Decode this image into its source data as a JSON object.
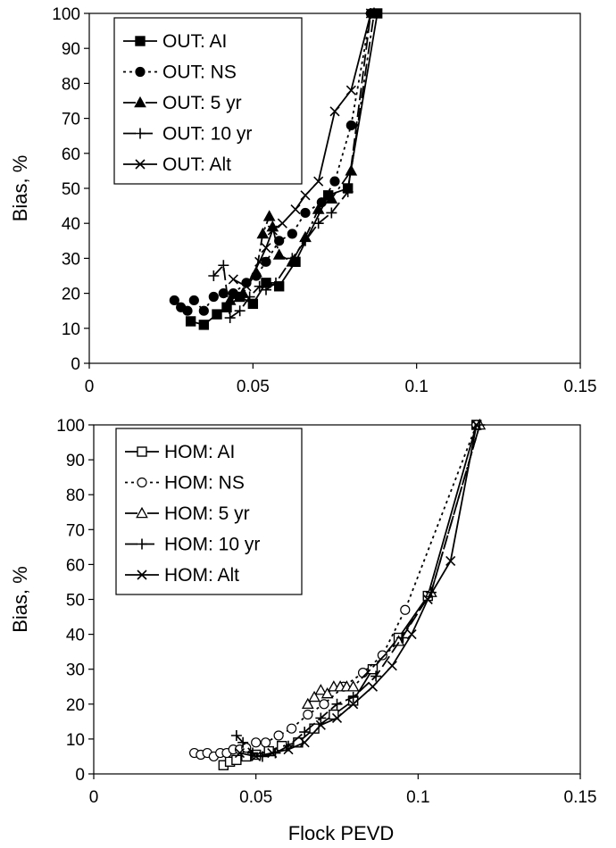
{
  "chart_data": [
    {
      "type": "scatter",
      "title": "",
      "xlabel": "",
      "ylabel": "Bias, %",
      "xlim": [
        0,
        0.15
      ],
      "ylim": [
        0,
        100
      ],
      "x_ticks": [
        "0",
        "0.05",
        "0.1",
        "0.15"
      ],
      "y_ticks": [
        "0",
        "10",
        "20",
        "30",
        "40",
        "50",
        "60",
        "70",
        "80",
        "90",
        "100"
      ],
      "grid": false,
      "legend": "top-left",
      "series": [
        {
          "name": "OUT: AI",
          "marker": "square-filled",
          "line": "solid",
          "x": [
            0.031,
            0.035,
            0.039,
            0.042,
            0.046,
            0.05,
            0.054,
            0.058,
            0.063,
            0.073,
            0.079,
            0.088
          ],
          "y": [
            12,
            11,
            14,
            16,
            19,
            17,
            23,
            22,
            29,
            48,
            50,
            100
          ]
        },
        {
          "name": "OUT: NS",
          "marker": "circle-filled",
          "line": "dotted",
          "x": [
            0.026,
            0.028,
            0.03,
            0.032,
            0.035,
            0.038,
            0.041,
            0.044,
            0.048,
            0.051,
            0.054,
            0.058,
            0.062,
            0.066,
            0.071,
            0.075,
            0.08,
            0.086
          ],
          "y": [
            18,
            16,
            15,
            18,
            15,
            19,
            20,
            20,
            23,
            25,
            29,
            35,
            37,
            43,
            46,
            52,
            68,
            100
          ]
        },
        {
          "name": "OUT: 5 yr",
          "marker": "triangle-filled",
          "line": "dash-dot",
          "x": [
            0.043,
            0.047,
            0.051,
            0.053,
            0.055,
            0.056,
            0.058,
            0.062,
            0.066,
            0.07,
            0.074,
            0.08,
            0.087
          ],
          "y": [
            18,
            20,
            26,
            37,
            42,
            39,
            31,
            29,
            36,
            44,
            47,
            55,
            100
          ]
        },
        {
          "name": "OUT: 10 yr",
          "marker": "plus",
          "line": "long-dash",
          "x": [
            0.038,
            0.041,
            0.043,
            0.046,
            0.049,
            0.052,
            0.054,
            0.057,
            0.062,
            0.066,
            0.07,
            0.074,
            0.079,
            0.086
          ],
          "y": [
            25,
            28,
            13,
            15,
            19,
            22,
            21,
            23,
            30,
            35,
            40,
            43,
            49,
            100
          ]
        },
        {
          "name": "OUT: Alt",
          "marker": "x",
          "line": "solid",
          "x": [
            0.044,
            0.048,
            0.052,
            0.054,
            0.056,
            0.059,
            0.063,
            0.066,
            0.07,
            0.075,
            0.08,
            0.086
          ],
          "y": [
            24,
            22,
            29,
            33,
            38,
            40,
            44,
            48,
            52,
            72,
            78,
            100
          ]
        }
      ]
    },
    {
      "type": "scatter",
      "title": "",
      "xlabel": "Flock PEVD",
      "ylabel": "Bias, %",
      "xlim": [
        0,
        0.15
      ],
      "ylim": [
        0,
        100
      ],
      "x_ticks": [
        "0",
        "0.05",
        "0.1",
        "0.15"
      ],
      "y_ticks": [
        "0",
        "10",
        "20",
        "30",
        "40",
        "50",
        "60",
        "70",
        "80",
        "90",
        "100"
      ],
      "grid": false,
      "legend": "top-left",
      "series": [
        {
          "name": "HOM: AI",
          "marker": "square-open",
          "line": "solid",
          "x": [
            0.04,
            0.042,
            0.044,
            0.047,
            0.05,
            0.054,
            0.058,
            0.063,
            0.068,
            0.074,
            0.08,
            0.086,
            0.094,
            0.103,
            0.118
          ],
          "y": [
            2.5,
            3.5,
            4,
            5,
            5.5,
            6.5,
            8,
            9,
            13,
            17,
            21,
            30,
            39,
            51,
            100
          ]
        },
        {
          "name": "HOM: NS",
          "marker": "circle-open",
          "line": "dotted",
          "x": [
            0.031,
            0.033,
            0.035,
            0.037,
            0.039,
            0.041,
            0.043,
            0.045,
            0.047,
            0.05,
            0.053,
            0.057,
            0.061,
            0.066,
            0.071,
            0.077,
            0.083,
            0.089,
            0.096,
            0.118
          ],
          "y": [
            6,
            5.5,
            6,
            5,
            6,
            6,
            7,
            7,
            7.5,
            9,
            9,
            11,
            13,
            17,
            20,
            25,
            29,
            34,
            47,
            100
          ]
        },
        {
          "name": "HOM: 5 yr",
          "marker": "triangle-open",
          "line": "dash-dot",
          "x": [
            0.066,
            0.068,
            0.07,
            0.072,
            0.074,
            0.076,
            0.078,
            0.08,
            0.094,
            0.104,
            0.119
          ],
          "y": [
            20,
            22,
            24,
            23,
            25,
            25,
            25,
            25,
            38,
            52,
            100
          ]
        },
        {
          "name": "HOM: 10 yr",
          "marker": "plus",
          "line": "long-dash",
          "x": [
            0.044,
            0.046,
            0.049,
            0.052,
            0.056,
            0.06,
            0.065,
            0.07,
            0.075,
            0.08,
            0.087,
            0.095,
            0.104,
            0.119
          ],
          "y": [
            11,
            9,
            6,
            5,
            6,
            8,
            12,
            16,
            20,
            22,
            28,
            39,
            52,
            100
          ]
        },
        {
          "name": "HOM: Alt",
          "marker": "x",
          "line": "solid",
          "x": [
            0.045,
            0.05,
            0.055,
            0.06,
            0.065,
            0.07,
            0.075,
            0.08,
            0.086,
            0.092,
            0.098,
            0.103,
            0.11,
            0.118
          ],
          "y": [
            6,
            5,
            6,
            7,
            9,
            14,
            16,
            20,
            25,
            31,
            40,
            50,
            61,
            100
          ]
        }
      ]
    }
  ]
}
